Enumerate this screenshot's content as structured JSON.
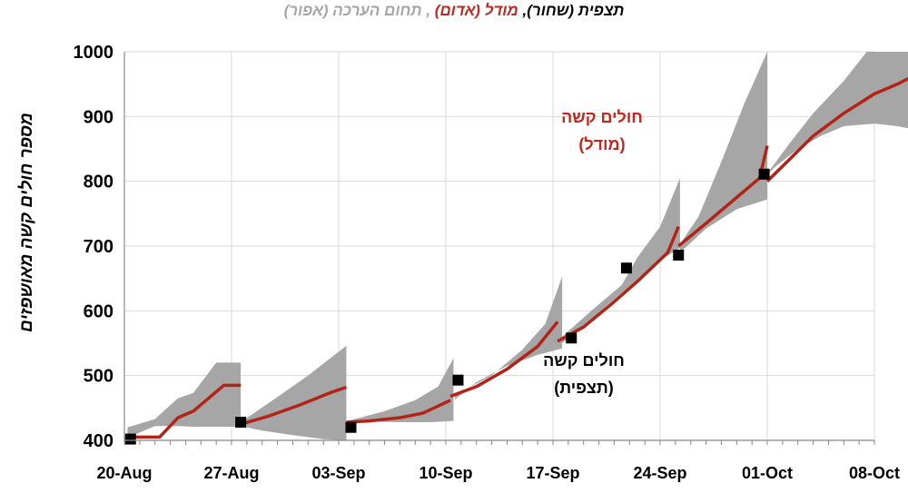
{
  "title": {
    "observed": "תצפית (שחור),",
    "model": "מודל (אדום)",
    "band": ", תחום הערכה (אפור)"
  },
  "annotations": {
    "model_line1": "חולים קשה",
    "model_line2": "(מודל)",
    "obs_line1": "חולים קשה",
    "obs_line2": "(תצפית)"
  },
  "colors": {
    "model": "#b22418",
    "band": "#a6a6a6",
    "observed": "#000000",
    "grid": "#d9d9d9"
  },
  "chart_data": {
    "type": "line",
    "ylabel": "מספר חולים קשה מאושפזים",
    "ylim": [
      400,
      1000
    ],
    "yticks": [
      400,
      500,
      600,
      700,
      800,
      900,
      1000
    ],
    "xlim_days": [
      0,
      49
    ],
    "xticks": [
      {
        "day": 0,
        "label": "20-Aug"
      },
      {
        "day": 7,
        "label": "27-Aug"
      },
      {
        "day": 14,
        "label": "03-Sep"
      },
      {
        "day": 21,
        "label": "10-Sep"
      },
      {
        "day": 28,
        "label": "17-Sep"
      },
      {
        "day": 35,
        "label": "24-Sep"
      },
      {
        "day": 42,
        "label": "01-Oct"
      },
      {
        "day": 49,
        "label": "08-Oct"
      }
    ],
    "grid": true,
    "series": [
      {
        "name": "מודל (אדום)",
        "segments": [
          [
            [
              0.4,
              405
            ],
            [
              2.3,
              405
            ],
            [
              3.5,
              435
            ],
            [
              4.5,
              445
            ],
            [
              6.5,
              485
            ],
            [
              7.6,
              485
            ]
          ],
          [
            [
              7.6,
              425
            ],
            [
              9.5,
              438
            ],
            [
              11.5,
              455
            ],
            [
              13.5,
              474
            ],
            [
              14.5,
              482
            ]
          ],
          [
            [
              14.5,
              428
            ],
            [
              16,
              430
            ],
            [
              18,
              435
            ],
            [
              19.5,
              442
            ],
            [
              20.5,
              453
            ],
            [
              21.3,
              462
            ]
          ],
          [
            [
              21.3,
              468
            ],
            [
              23,
              483
            ],
            [
              25,
              510
            ],
            [
              27,
              545
            ],
            [
              28.3,
              583
            ]
          ],
          [
            [
              28.3,
              553
            ],
            [
              30,
              575
            ],
            [
              31.8,
              610
            ],
            [
              33.5,
              645
            ],
            [
              35.5,
              690
            ],
            [
              36.2,
              730
            ]
          ],
          [
            [
              36.2,
              700
            ],
            [
              38,
              735
            ],
            [
              40,
              775
            ],
            [
              41.5,
              805
            ],
            [
              42,
              855
            ]
          ],
          [
            [
              42,
              800
            ],
            [
              43.5,
              835
            ],
            [
              45,
              870
            ],
            [
              47,
              905
            ],
            [
              49,
              935
            ],
            [
              50.5,
              950
            ],
            [
              51.5,
              962
            ]
          ]
        ]
      },
      {
        "name": "תצפית (שחור)",
        "points": [
          [
            0.4,
            402
          ],
          [
            7.6,
            428
          ],
          [
            14.8,
            420
          ],
          [
            21.8,
            493
          ],
          [
            29.2,
            558
          ],
          [
            32.8,
            666
          ],
          [
            36.2,
            686
          ],
          [
            41.8,
            811
          ]
        ]
      },
      {
        "name": "תחום הערכה (אפור)",
        "bands": [
          {
            "upper": [
              [
                0.2,
                420
              ],
              [
                2,
                433
              ],
              [
                3.5,
                465
              ],
              [
                4.5,
                473
              ],
              [
                6,
                520
              ],
              [
                7.6,
                520
              ]
            ],
            "lower": [
              [
                7.6,
                421
              ],
              [
                6,
                421
              ],
              [
                4.5,
                421
              ],
              [
                3.5,
                422
              ],
              [
                2,
                422
              ],
              [
                0.2,
                404
              ]
            ]
          },
          {
            "upper": [
              [
                7.6,
                428
              ],
              [
                10,
                467
              ],
              [
                12,
                500
              ],
              [
                14.5,
                546
              ],
              [
                14.5,
                546
              ]
            ],
            "lower": [
              [
                14.5,
                400
              ],
              [
                13,
                402
              ],
              [
                11,
                408
              ],
              [
                9,
                415
              ],
              [
                7.6,
                422
              ]
            ]
          },
          {
            "upper": [
              [
                14.6,
                430
              ],
              [
                17,
                445
              ],
              [
                19,
                462
              ],
              [
                20.5,
                483
              ],
              [
                21.5,
                527
              ],
              [
                21.5,
                527
              ]
            ],
            "lower": [
              [
                21.5,
                430
              ],
              [
                20,
                428
              ],
              [
                18,
                428
              ],
              [
                16,
                429
              ],
              [
                14.6,
                425
              ]
            ]
          },
          {
            "upper": [
              [
                21.6,
                470
              ],
              [
                24,
                500
              ],
              [
                26,
                540
              ],
              [
                27.5,
                580
              ],
              [
                28.6,
                653
              ]
            ],
            "lower": [
              [
                28.6,
                542
              ],
              [
                27,
                532
              ],
              [
                25,
                515
              ],
              [
                23,
                490
              ],
              [
                21.6,
                463
              ]
            ]
          },
          {
            "upper": [
              [
                28.6,
                560
              ],
              [
                30.5,
                600
              ],
              [
                32.5,
                640
              ],
              [
                33.5,
                682
              ],
              [
                35,
                730
              ],
              [
                36.3,
                805
              ]
            ],
            "lower": [
              [
                36.3,
                697
              ],
              [
                35,
                678
              ],
              [
                33.5,
                648
              ],
              [
                32,
                618
              ],
              [
                30.5,
                587
              ],
              [
                28.6,
                550
              ]
            ]
          },
          {
            "upper": [
              [
                36.3,
                703
              ],
              [
                37.5,
                745
              ],
              [
                39,
                830
              ],
              [
                40.5,
                920
              ],
              [
                42,
                1004
              ]
            ],
            "lower": [
              [
                42,
                772
              ],
              [
                40,
                757
              ],
              [
                38,
                727
              ],
              [
                37,
                705
              ],
              [
                36.3,
                690
              ]
            ]
          },
          {
            "upper": [
              [
                42,
                812
              ],
              [
                43.5,
                860
              ],
              [
                45,
                905
              ],
              [
                47,
                955
              ],
              [
                48.5,
                1000
              ],
              [
                51.6,
                1000
              ]
            ],
            "lower": [
              [
                51.6,
                880
              ],
              [
                50.5,
                885
              ],
              [
                49,
                889
              ],
              [
                47,
                885
              ],
              [
                45.5,
                870
              ],
              [
                44,
                850
              ],
              [
                42.5,
                822
              ],
              [
                42,
                810
              ]
            ]
          }
        ]
      }
    ]
  }
}
